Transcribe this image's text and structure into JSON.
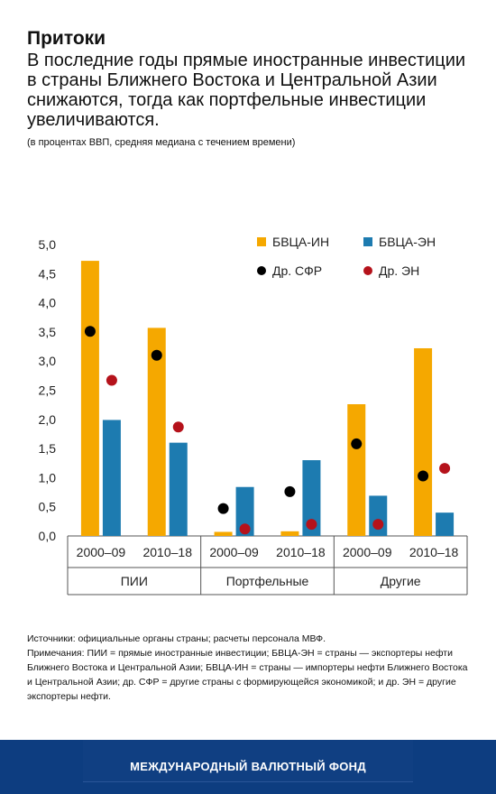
{
  "header": {
    "title": "Притоки",
    "subtitle": "В последние годы прямые иностранные инвестиции в страны Ближнего Востока и Центральной Азии снижаются, тогда как портфельные инвестиции увеличиваются.",
    "unit_note": "(в процентах ВВП, средняя медиана с течением времени)"
  },
  "chart_data": {
    "type": "bar",
    "ylim": [
      0,
      5
    ],
    "yticks": [
      "0,0",
      "0,5",
      "1,0",
      "1,5",
      "2,0",
      "2,5",
      "3,0",
      "3,5",
      "4,0",
      "4,5",
      "5,0"
    ],
    "groups": [
      {
        "label": "ПИИ",
        "periods": [
          "2000–09",
          "2010–18"
        ]
      },
      {
        "label": "Портфельные",
        "periods": [
          "2000–09",
          "2010–18"
        ]
      },
      {
        "label": "Другие",
        "periods": [
          "2000–09",
          "2010–18"
        ]
      }
    ],
    "categories": [
      "2000–09",
      "2010–18",
      "2000–09",
      "2010–18",
      "2000–09",
      "2010–18"
    ],
    "bar_series": [
      {
        "name": "БВЦА-ИН",
        "color": "#f5a800",
        "values": [
          4.72,
          3.57,
          0.07,
          0.08,
          2.26,
          3.22
        ]
      },
      {
        "name": "БВЦА-ЭН",
        "color": "#1d7bb0",
        "values": [
          1.99,
          1.6,
          0.84,
          1.3,
          0.69,
          0.4
        ]
      }
    ],
    "point_series": [
      {
        "name": "Др. СФР",
        "color": "#000000",
        "values": [
          3.51,
          3.1,
          0.47,
          0.76,
          1.58,
          1.03
        ]
      },
      {
        "name": "Др. ЭН",
        "color": "#b5121b",
        "values": [
          2.67,
          1.87,
          0.12,
          0.2,
          0.2,
          1.16
        ]
      }
    ],
    "legend_position": "top-right",
    "grid": false
  },
  "notes": {
    "sources": "Источники: официальные органы страны; расчеты персонала МВФ.",
    "explanation": "Примечания: ПИИ = прямые иностранные инвестиции; БВЦА-ЭН = страны — экспортеры нефти Ближнего Востока и Центральной Азии; БВЦА-ИН = страны — импортеры нефти Ближнего Востока и Центральной Азии; др. СФР = другие страны с формирующейся экономикой; и др. ЭН = другие  экспортеры нефти."
  },
  "footer": {
    "organization": "МЕЖДУНАРОДНЫЙ ВАЛЮТНЫЙ ФОНД"
  }
}
